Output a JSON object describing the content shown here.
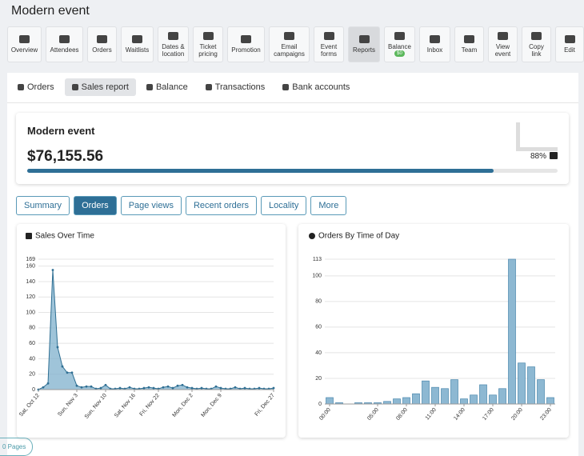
{
  "header": {
    "title": "Modern event"
  },
  "toolbar": [
    {
      "label": "Overview"
    },
    {
      "label": "Attendees"
    },
    {
      "label": "Orders"
    },
    {
      "label": "Waitlists"
    },
    {
      "label": "Dates & location"
    },
    {
      "label": "Ticket pricing"
    },
    {
      "label": "Promotion"
    },
    {
      "label": "Email campaigns"
    },
    {
      "label": "Event forms"
    },
    {
      "label": "Reports",
      "active": true
    },
    {
      "label": "Balance",
      "badge": "$0"
    },
    {
      "label": "Inbox"
    },
    {
      "label": "Team"
    },
    {
      "label": "View event"
    },
    {
      "label": "Copy link"
    },
    {
      "label": "Edit"
    }
  ],
  "tabs": [
    {
      "label": "Orders"
    },
    {
      "label": "Sales report",
      "active": true
    },
    {
      "label": "Balance"
    },
    {
      "label": "Transactions"
    },
    {
      "label": "Bank accounts"
    }
  ],
  "card": {
    "title": "Modern event",
    "amount": "$76,155.56",
    "progress": 88,
    "progress_label": "88%"
  },
  "buttons": [
    {
      "label": "Summary"
    },
    {
      "label": "Orders",
      "active": true
    },
    {
      "label": "Page views"
    },
    {
      "label": "Recent orders"
    },
    {
      "label": "Locality"
    },
    {
      "label": "More"
    }
  ],
  "chart_data": [
    {
      "type": "area",
      "title": "Sales Over Time",
      "color": "#2f6f93",
      "categories": [
        "Sat, Oct 12",
        null,
        null,
        null,
        null,
        null,
        null,
        null,
        "Sun, Nov 3",
        null,
        null,
        null,
        null,
        null,
        "Sun, Nov 10",
        null,
        null,
        null,
        null,
        null,
        "Sat, Nov 16",
        null,
        null,
        null,
        null,
        "Fri, Nov 22",
        null,
        null,
        null,
        null,
        null,
        null,
        "Mon, Dec 2",
        null,
        null,
        null,
        null,
        null,
        "Mon, Dec 9",
        null,
        null,
        null,
        null,
        null,
        null,
        null,
        null,
        null,
        null,
        "Fri, Dec 27"
      ],
      "values": [
        0,
        3,
        8,
        155,
        55,
        30,
        22,
        22,
        5,
        3,
        4,
        4,
        1,
        2,
        6,
        1,
        1,
        2,
        1,
        3,
        1,
        1,
        2,
        3,
        2,
        1,
        3,
        4,
        2,
        5,
        6,
        3,
        2,
        1,
        2,
        1,
        1,
        4,
        2,
        1,
        1,
        3,
        1,
        2,
        1,
        1,
        2,
        1,
        1,
        2
      ],
      "ylim": [
        0,
        169
      ],
      "yticks": [
        0,
        20,
        40,
        60,
        80,
        100,
        120,
        140,
        160,
        169
      ],
      "grid": true
    },
    {
      "type": "bar",
      "title": "Orders By Time of Day",
      "color": "#8db8d2",
      "categories": [
        "00:00",
        null,
        null,
        null,
        null,
        "05:00",
        null,
        null,
        "08:00",
        null,
        null,
        "11:00",
        null,
        null,
        "14:00",
        null,
        null,
        "17:00",
        null,
        null,
        "20:00",
        null,
        null,
        "23:00"
      ],
      "values": [
        5,
        1,
        0,
        1,
        1,
        1,
        2,
        4,
        5,
        8,
        18,
        13,
        12,
        19,
        4,
        7,
        15,
        7,
        12,
        113,
        32,
        29,
        19,
        5
      ],
      "ylim": [
        0,
        113
      ],
      "yticks": [
        0,
        20,
        40,
        60,
        80,
        100,
        113
      ],
      "grid": true
    }
  ],
  "footer": {
    "pager": "0 Pages"
  }
}
